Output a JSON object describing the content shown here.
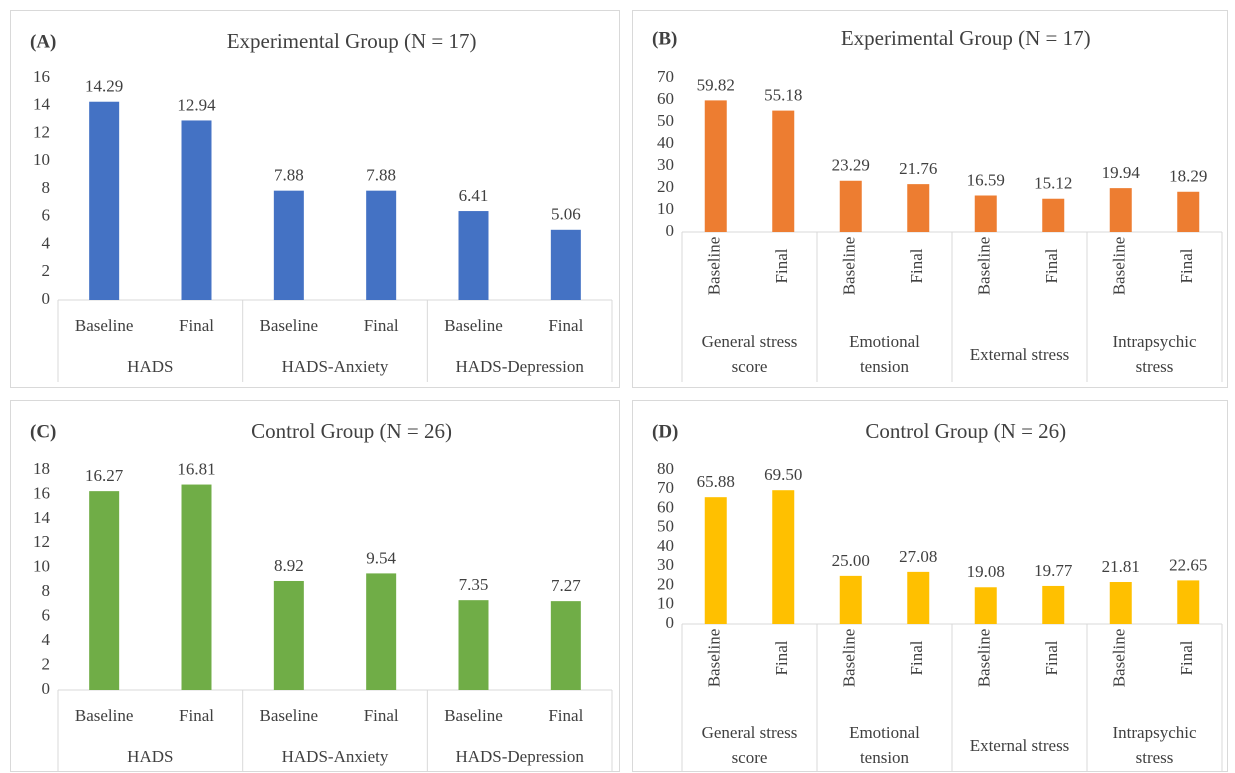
{
  "chart_data": [
    {
      "type": "bar",
      "label": "(A)",
      "title": "Experimental Group (N = 17)",
      "color": "#4472c4",
      "categories": [
        "Baseline",
        "Final",
        "Baseline",
        "Final",
        "Baseline",
        "Final"
      ],
      "groups": [
        "HADS",
        "HADS-Anxiety",
        "HADS-Depression"
      ],
      "values": [
        14.29,
        12.94,
        7.88,
        7.88,
        6.41,
        5.06
      ],
      "ylim": [
        0,
        16
      ],
      "yticks": [
        0,
        2,
        4,
        6,
        8,
        10,
        12,
        14,
        16
      ]
    },
    {
      "type": "bar",
      "label": "(B)",
      "title": "Experimental Group (N = 17)",
      "color": "#ed7d31",
      "categories": [
        "Baseline",
        "Final",
        "Baseline",
        "Final",
        "Baseline",
        "Final",
        "Baseline",
        "Final"
      ],
      "groups": [
        "General stress score",
        "Emotional tension",
        "External stress",
        "Intrapsychic stress"
      ],
      "values": [
        59.82,
        55.18,
        23.29,
        21.76,
        16.59,
        15.12,
        19.94,
        18.29
      ],
      "ylim": [
        0,
        70
      ],
      "yticks": [
        0,
        10,
        20,
        30,
        40,
        50,
        60,
        70
      ]
    },
    {
      "type": "bar",
      "label": "(C)",
      "title": "Control Group (N = 26)",
      "color": "#70ad47",
      "categories": [
        "Baseline",
        "Final",
        "Baseline",
        "Final",
        "Baseline",
        "Final"
      ],
      "groups": [
        "HADS",
        "HADS-Anxiety",
        "HADS-Depression"
      ],
      "values": [
        16.27,
        16.81,
        8.92,
        9.54,
        7.35,
        7.27
      ],
      "ylim": [
        0,
        18
      ],
      "yticks": [
        0,
        2,
        4,
        6,
        8,
        10,
        12,
        14,
        16,
        18
      ]
    },
    {
      "type": "bar",
      "label": "(D)",
      "title": "Control Group (N = 26)",
      "color": "#ffc000",
      "categories": [
        "Baseline",
        "Final",
        "Baseline",
        "Final",
        "Baseline",
        "Final",
        "Baseline",
        "Final"
      ],
      "groups": [
        "General stress score",
        "Emotional tension",
        "External stress",
        "Intrapsychic stress"
      ],
      "values": [
        65.88,
        69.5,
        25,
        27.08,
        19.08,
        19.77,
        21.81,
        22.65
      ],
      "value_labels": [
        "65.88",
        "69.50",
        "25.00",
        "27.08",
        "19.08",
        "19.77",
        "21.81",
        "22.65"
      ],
      "ylim": [
        0,
        80
      ],
      "yticks": [
        0,
        10,
        20,
        30,
        40,
        50,
        60,
        70,
        80
      ]
    }
  ]
}
